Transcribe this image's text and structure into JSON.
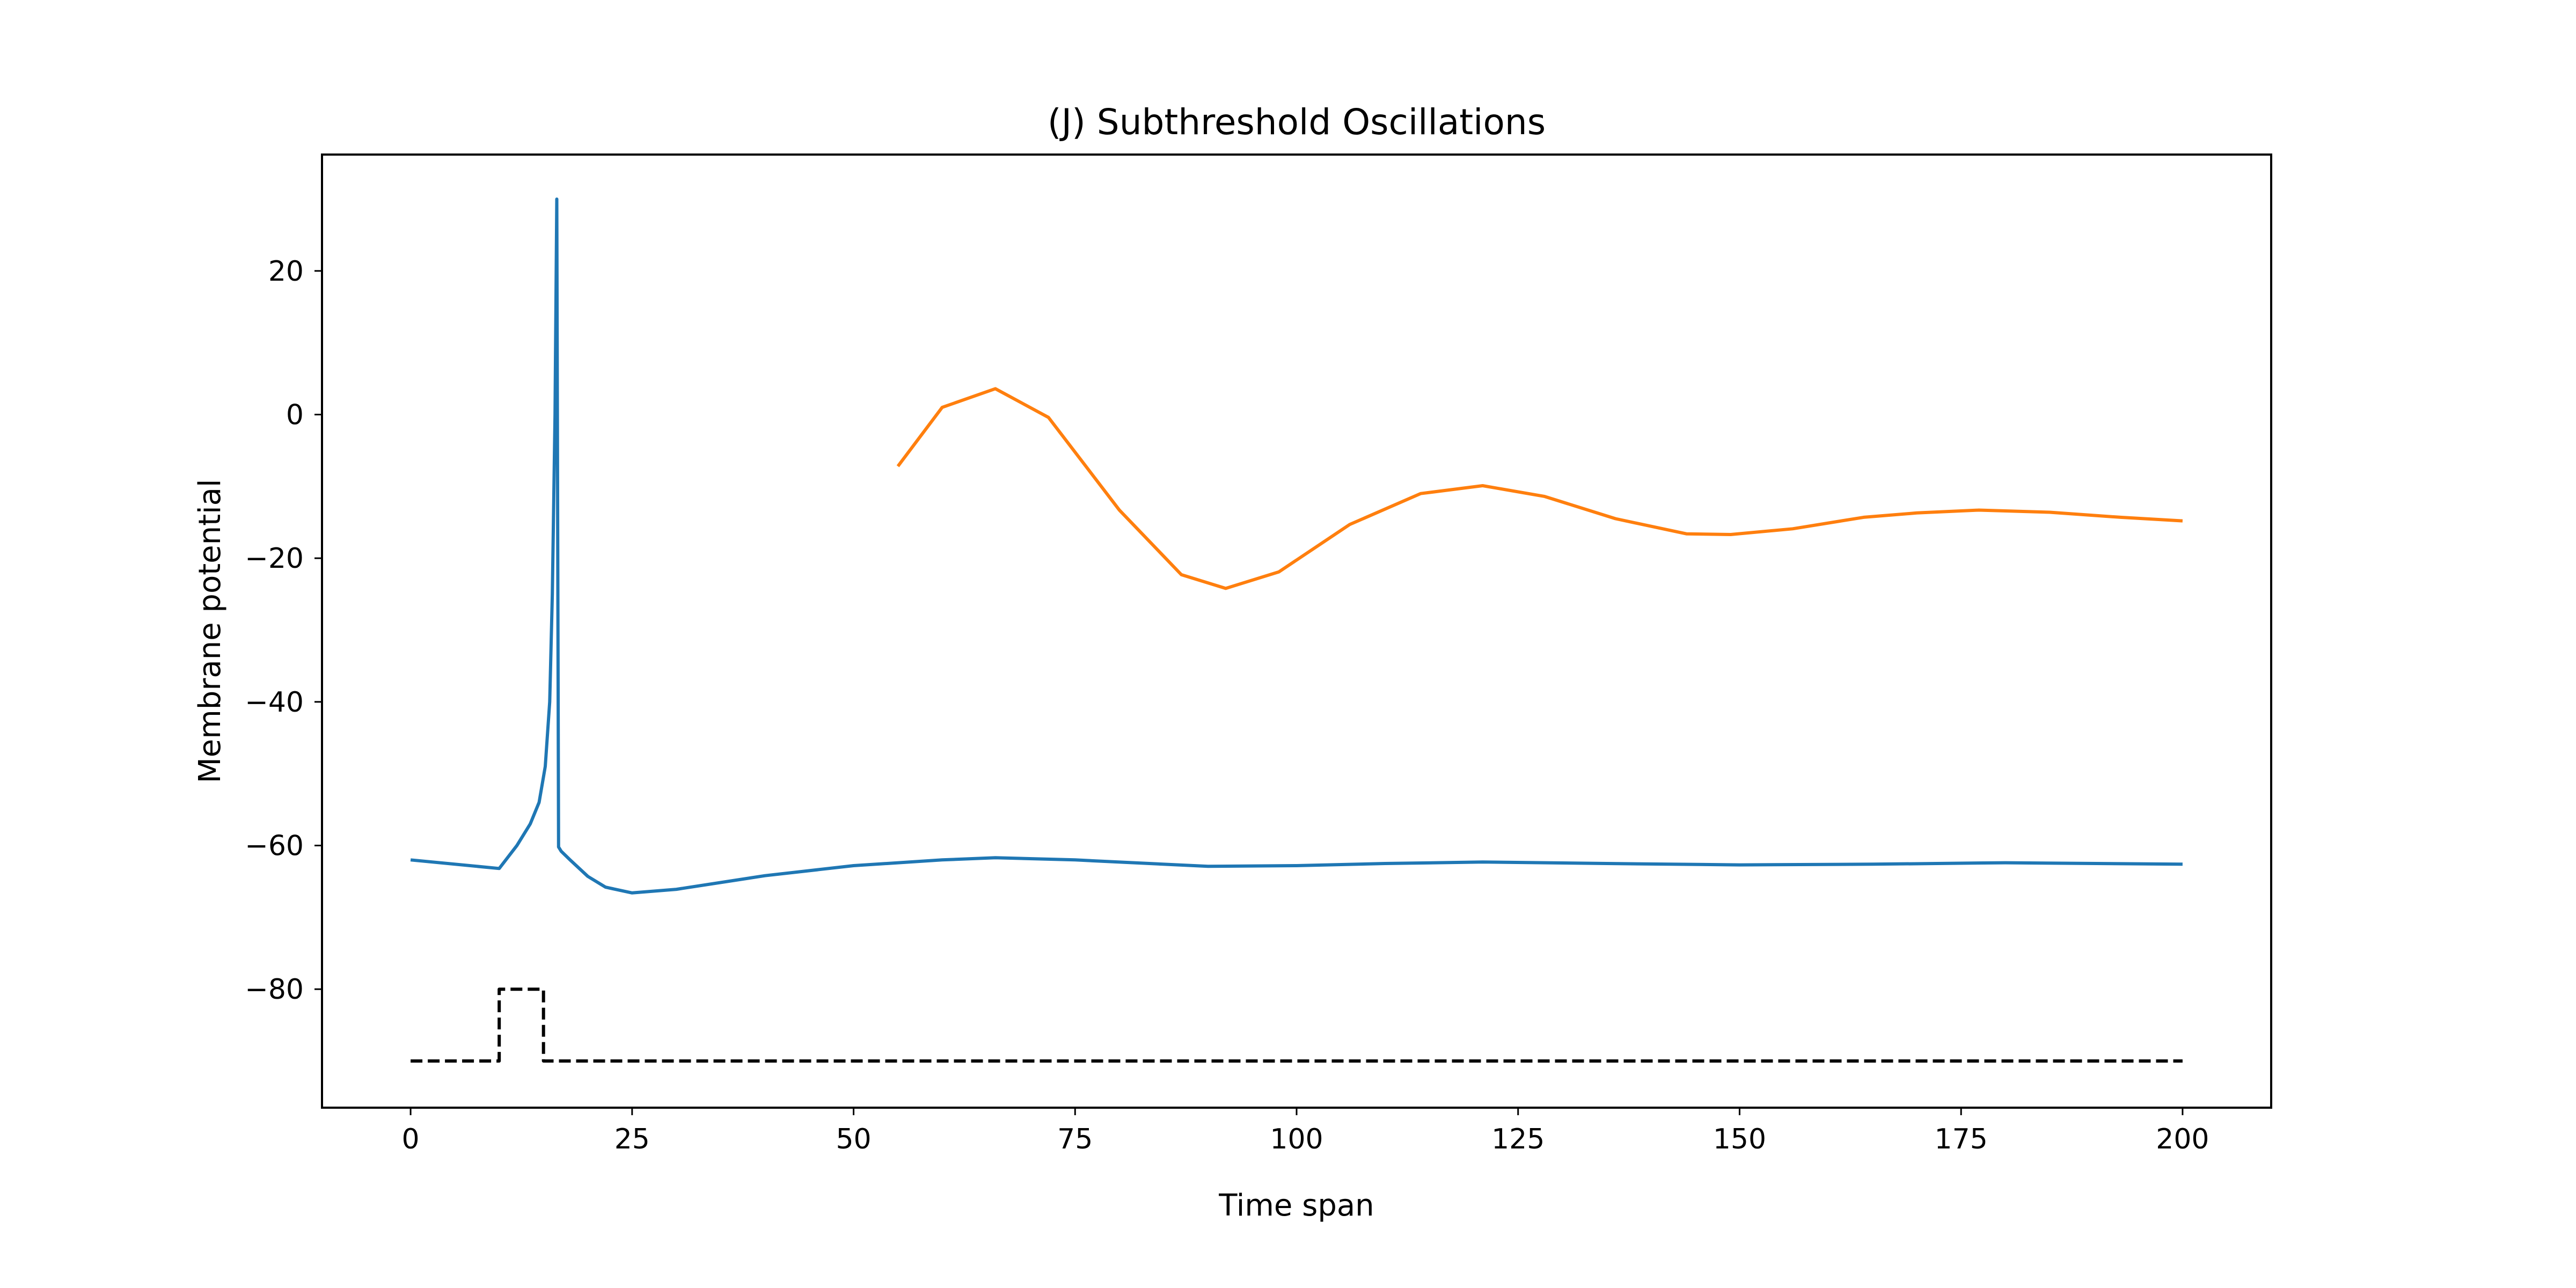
{
  "chart_data": {
    "type": "line",
    "title": "(J) Subthreshold Oscillations",
    "xlabel": "Time span",
    "ylabel": "Membrane potential",
    "xlim": [
      -10,
      210
    ],
    "ylim": [
      -96.5,
      36.2
    ],
    "xticks": [
      0,
      25,
      50,
      75,
      100,
      125,
      150,
      175,
      200
    ],
    "yticks": [
      -80,
      -60,
      -40,
      -20,
      0,
      20
    ],
    "grid": false,
    "legend": "none",
    "series": [
      {
        "color": "#1f77b4",
        "style": "solid",
        "x": [
          0,
          10,
          12,
          13.5,
          14.5,
          15.2,
          15.7,
          16.0,
          16.3,
          16.5,
          16.7,
          17,
          18,
          20,
          22,
          25,
          30,
          40,
          50,
          60,
          66,
          75,
          90,
          100,
          110,
          121,
          135,
          150,
          165,
          180,
          200
        ],
        "y": [
          -62,
          -63.2,
          -60,
          -57,
          -54,
          -49,
          -40,
          -25,
          0,
          30,
          -60.2,
          -60.8,
          -62,
          -64.3,
          -65.8,
          -66.6,
          -66.1,
          -64.2,
          -62.8,
          -62,
          -61.7,
          -62,
          -62.9,
          -62.8,
          -62.5,
          -62.3,
          -62.5,
          -62.7,
          -62.6,
          -62.4,
          -62.6
        ]
      },
      {
        "color": "#ff7f0e",
        "style": "solid",
        "x": [
          55,
          60,
          66,
          72,
          80,
          87,
          92,
          98,
          106,
          114,
          121,
          128,
          136,
          144,
          149,
          156,
          164,
          170,
          177,
          185,
          193,
          200
        ],
        "y": [
          -7.2,
          1.0,
          3.6,
          -0.4,
          -13.3,
          -22.3,
          -24.2,
          -21.9,
          -15.3,
          -11.0,
          -9.9,
          -11.4,
          -14.5,
          -16.6,
          -16.7,
          -15.9,
          -14.3,
          -13.7,
          -13.3,
          -13.6,
          -14.3,
          -14.8
        ]
      },
      {
        "color": "#000000",
        "style": "dashed",
        "x": [
          0,
          10,
          10,
          15,
          15,
          200
        ],
        "y": [
          -90,
          -90,
          -80,
          -80,
          -90,
          -90
        ]
      }
    ]
  }
}
